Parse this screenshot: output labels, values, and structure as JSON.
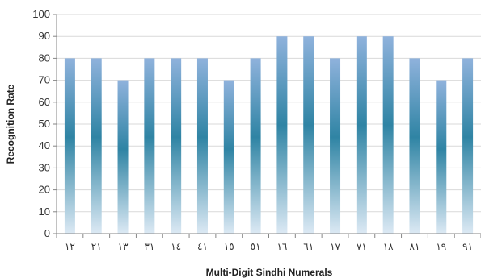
{
  "chart_data": {
    "type": "bar",
    "title": "",
    "xlabel": "Multi-Digit Sindhi Numerals",
    "ylabel": "Recognition Rate",
    "ylim": [
      0,
      100
    ],
    "yticks": [
      0,
      10,
      20,
      30,
      40,
      50,
      60,
      70,
      80,
      90,
      100
    ],
    "grid": true,
    "legend": "none",
    "bar_color_top": "#8fb2dc",
    "bar_color_mid": "#2f84a4",
    "bar_color_bottom": "#dce9f4",
    "categories": [
      "١٢",
      "٢١",
      "١٣",
      "٣١",
      "١٤",
      "٤١",
      "١٥",
      "٥١",
      "١٦",
      "٦١",
      "١٧",
      "٧١",
      "١٨",
      "٨١",
      "١٩",
      "٩١"
    ],
    "values": [
      80,
      80,
      70,
      80,
      80,
      80,
      70,
      80,
      90,
      90,
      80,
      90,
      90,
      80,
      70,
      80
    ]
  }
}
